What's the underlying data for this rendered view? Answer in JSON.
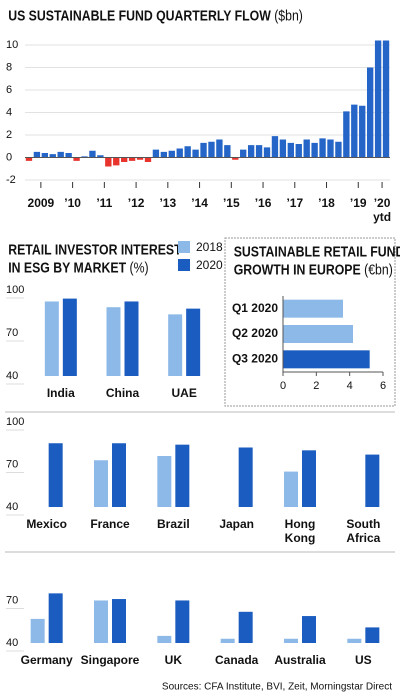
{
  "chart_data": [
    {
      "type": "bar",
      "title": "US SUSTAINABLE FUND QUARTERLY FLOW",
      "unit": "($bn)",
      "categories": [
        null,
        "2009",
        null,
        null,
        null,
        "’10",
        null,
        null,
        null,
        "’11",
        null,
        null,
        null,
        "’12",
        null,
        null,
        null,
        "’13",
        null,
        null,
        null,
        "’14",
        null,
        null,
        null,
        "’15",
        null,
        null,
        null,
        "’16",
        null,
        null,
        null,
        "’17",
        null,
        null,
        null,
        "’18",
        null,
        null,
        null,
        "’19",
        null,
        null,
        "’20",
        null
      ],
      "x_note": "ytd",
      "values": [
        -0.3,
        0.5,
        0.4,
        0.3,
        0.5,
        0.4,
        -0.3,
        0.1,
        0.6,
        0.2,
        -0.8,
        -0.7,
        -0.4,
        -0.3,
        -0.2,
        -0.4,
        0.7,
        0.5,
        0.6,
        0.8,
        1.0,
        0.7,
        1.3,
        1.4,
        1.6,
        1.1,
        -0.2,
        0.7,
        1.1,
        1.1,
        0.9,
        1.9,
        1.6,
        1.3,
        1.2,
        1.6,
        1.3,
        1.7,
        1.6,
        1.4,
        4.1,
        4.7,
        4.6,
        8.0,
        10.4,
        10.4
      ],
      "color": "#2565c7",
      "negative_color": "#e8342c",
      "ylim": [
        -2,
        10
      ],
      "yticks": [
        -2,
        0,
        2,
        4,
        6,
        8,
        10
      ],
      "grid": true
    },
    {
      "type": "grouped_bar",
      "title": [
        "RETAIL INVESTOR INTEREST",
        "IN ESG BY MARKET"
      ],
      "unit": "(%)",
      "series": [
        {
          "name": "2018",
          "color": "#8db9e8"
        },
        {
          "name": "2020",
          "color": "#1a5cbf"
        }
      ],
      "panels": [
        {
          "categories": [
            "India",
            "China",
            "UAE"
          ],
          "values": [
            [
              92,
              88,
              83
            ],
            [
              94,
              92,
              87
            ]
          ],
          "ylim": [
            40,
            100
          ],
          "yticks": [
            40,
            70,
            100
          ]
        },
        {
          "categories": [
            "Mexico",
            "France",
            "Brazil",
            "Japan",
            "Hong Kong",
            "South Africa"
          ],
          "values": [
            [
              null,
              73,
              76,
              null,
              65,
              null
            ],
            [
              85,
              85,
              84,
              82,
              80,
              77
            ]
          ],
          "ylim": [
            40,
            100
          ],
          "yticks": [
            40,
            70,
            100
          ]
        },
        {
          "categories": [
            "Germany",
            "Singapore",
            "UK",
            "Canada",
            "Australia",
            "US"
          ],
          "values": [
            [
              57,
              70,
              45,
              43,
              43,
              43
            ],
            [
              75,
              71,
              70,
              62,
              59,
              51
            ]
          ],
          "ylim": [
            40,
            95
          ],
          "yticks": [
            40,
            70
          ]
        }
      ]
    },
    {
      "type": "hbar",
      "title": [
        "SUSTAINABLE RETAIL FUND",
        "GROWTH IN EUROPE"
      ],
      "unit": "(€bn)",
      "categories": [
        "Q1 2020",
        "Q2 2020",
        "Q3 2020"
      ],
      "values": [
        3.6,
        4.2,
        5.2
      ],
      "colors": [
        "#8db9e8",
        "#8db9e8",
        "#1a5cbf"
      ],
      "xlim": [
        0,
        6
      ],
      "xticks": [
        0,
        2,
        4,
        6
      ]
    }
  ],
  "source": "Sources: CFA Institute, BVI, Zeit,  Morningstar Direct"
}
